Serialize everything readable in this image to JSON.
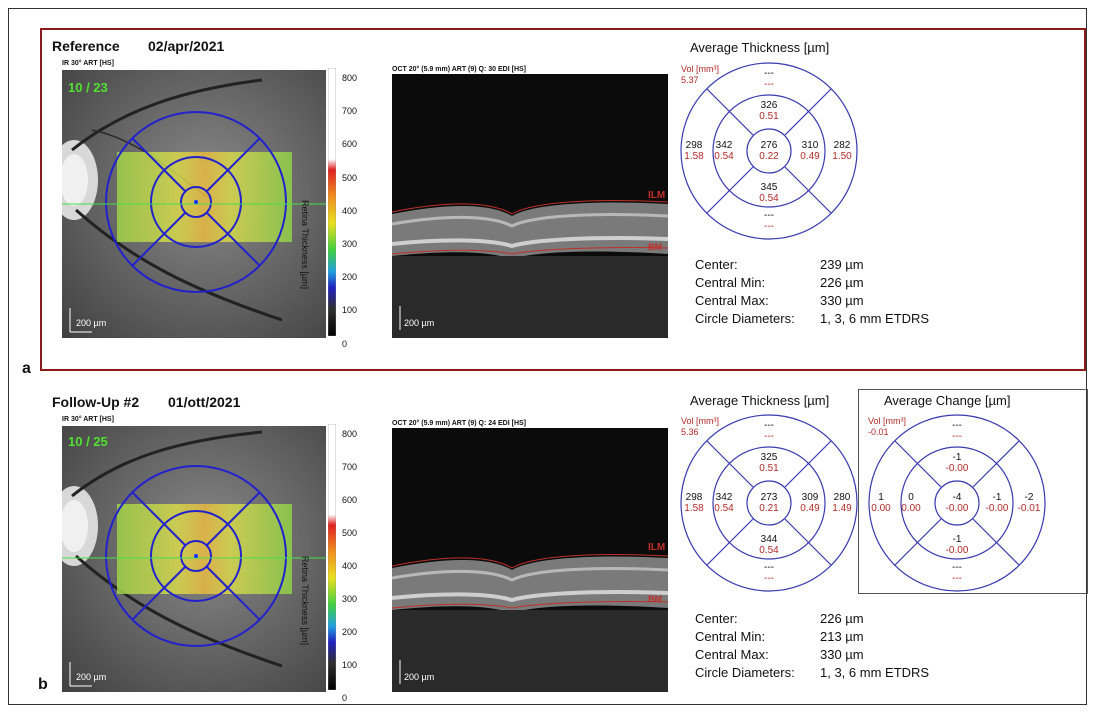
{
  "panel_a": {
    "letter": "a",
    "title": "Reference",
    "date": "02/apr/2021",
    "ir_label": "IR 30° ART [HS]",
    "ir_counter": "10 / 23",
    "oct_label": "OCT 20° (5.9 mm) ART (9) Q: 30 EDI [HS]",
    "scale_ticks": [
      "800",
      "700",
      "600",
      "500",
      "400",
      "300",
      "200",
      "100",
      "0"
    ],
    "scale_title": "Retina Thickness [µm]",
    "ir_scalebar": "200 µm",
    "oct_scalebar": "200 µm",
    "ilm": "ILM",
    "bm": "BM",
    "thickness_title": "Average Thickness [µm]",
    "vol_label": "Vol [mm³]",
    "vol_value": "5.37",
    "grid": {
      "outer_top": "---",
      "outer_top_v": "---",
      "inner_top": "326",
      "inner_top_v": "0.51",
      "outer_left": "298",
      "outer_left_v": "1.58",
      "inner_left": "342",
      "inner_left_v": "0.54",
      "center": "276",
      "center_v": "0.22",
      "inner_right": "310",
      "inner_right_v": "0.49",
      "outer_right": "282",
      "outer_right_v": "1.50",
      "inner_bottom": "345",
      "inner_bottom_v": "0.54",
      "outer_bottom": "---",
      "outer_bottom_v": "---"
    },
    "stats": [
      {
        "label": "Center:",
        "value": "239 µm"
      },
      {
        "label": "Central Min:",
        "value": "226 µm"
      },
      {
        "label": "Central Max:",
        "value": "330 µm"
      },
      {
        "label": "Circle Diameters:",
        "value": "1, 3, 6 mm ETDRS"
      }
    ]
  },
  "panel_b": {
    "letter": "b",
    "title": "Follow-Up #2",
    "date": "01/ott/2021",
    "ir_label": "IR 30° ART [HS]",
    "ir_counter": "10 / 25",
    "oct_label": "OCT 20° (5.9 mm) ART (9) Q: 24 EDI [HS]",
    "scale_ticks": [
      "800",
      "700",
      "600",
      "500",
      "400",
      "300",
      "200",
      "100",
      "0"
    ],
    "scale_title": "Retina Thickness [µm]",
    "ir_scalebar": "200 µm",
    "oct_scalebar": "200 µm",
    "ilm": "ILM",
    "bm": "BM",
    "thickness_title": "Average Thickness [µm]",
    "vol_label": "Vol [mm³]",
    "vol_value": "5.36",
    "grid": {
      "outer_top": "---",
      "outer_top_v": "---",
      "inner_top": "325",
      "inner_top_v": "0.51",
      "outer_left": "298",
      "outer_left_v": "1.58",
      "inner_left": "342",
      "inner_left_v": "0.54",
      "center": "273",
      "center_v": "0.21",
      "inner_right": "309",
      "inner_right_v": "0.49",
      "outer_right": "280",
      "outer_right_v": "1.49",
      "inner_bottom": "344",
      "inner_bottom_v": "0.54",
      "outer_bottom": "---",
      "outer_bottom_v": "---"
    },
    "change_title": "Average Change [µm]",
    "change_vol_label": "Vol [mm³]",
    "change_vol_value": "-0.01",
    "change_grid": {
      "outer_top": "---",
      "outer_top_v": "---",
      "inner_top": "-1",
      "inner_top_v": "-0.00",
      "outer_left": "1",
      "outer_left_v": "0.00",
      "inner_left": "0",
      "inner_left_v": "0.00",
      "center": "-4",
      "center_v": "-0.00",
      "inner_right": "-1",
      "inner_right_v": "-0.00",
      "outer_right": "-2",
      "outer_right_v": "-0.01",
      "inner_bottom": "-1",
      "inner_bottom_v": "-0.00",
      "outer_bottom": "---",
      "outer_bottom_v": "---"
    },
    "stats": [
      {
        "label": "Center:",
        "value": "226 µm"
      },
      {
        "label": "Central Min:",
        "value": "213 µm"
      },
      {
        "label": "Central Max:",
        "value": "330 µm"
      },
      {
        "label": "Circle Diameters:",
        "value": "1, 3, 6 mm ETDRS"
      }
    ]
  },
  "colors": {
    "frame_red": "#8b1a1a",
    "grid_blue": "#3a3ab0",
    "value_red": "#b02a2a",
    "ilm_red": "#c0302a"
  }
}
